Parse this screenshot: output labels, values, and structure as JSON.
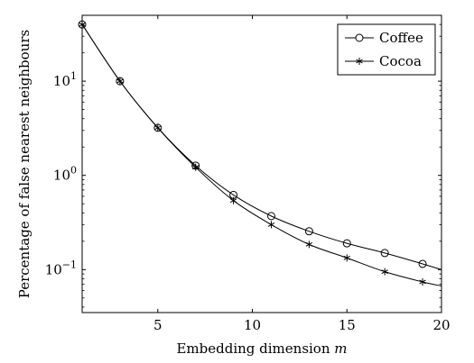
{
  "chart_data": {
    "type": "line",
    "xlabel": "Embedding dimension",
    "xlabel_var": "m",
    "ylabel": "Percentage of false nearest neighbours",
    "xlim": [
      1,
      20
    ],
    "ylim": [
      0.035,
      50
    ],
    "yscale": "log",
    "grid": false,
    "legend_position": "top-right",
    "x_ticks": [
      5,
      10,
      15,
      20
    ],
    "y_ticks": [
      {
        "value": 0.1,
        "base": "10",
        "exp": "−1"
      },
      {
        "value": 1,
        "base": "10",
        "exp": "0"
      },
      {
        "value": 10,
        "base": "10",
        "exp": "1"
      }
    ],
    "series": [
      {
        "name": "Coffee",
        "marker": "circle",
        "x": [
          1,
          3,
          5,
          7,
          9,
          11,
          13,
          15,
          17,
          19,
          20
        ],
        "y": [
          40,
          10,
          3.2,
          1.27,
          0.62,
          0.37,
          0.255,
          0.19,
          0.15,
          0.115,
          0.1
        ]
      },
      {
        "name": "Cocoa",
        "marker": "star",
        "x": [
          1,
          3,
          5,
          7,
          9,
          11,
          13,
          15,
          17,
          19,
          20
        ],
        "y": [
          40,
          10,
          3.2,
          1.22,
          0.54,
          0.3,
          0.185,
          0.133,
          0.095,
          0.074,
          0.067
        ]
      }
    ]
  }
}
